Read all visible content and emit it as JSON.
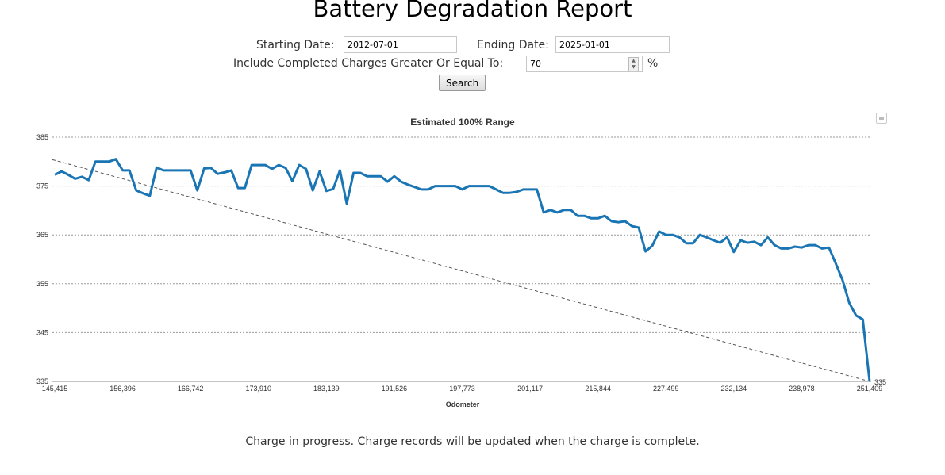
{
  "page": {
    "title": "Battery Degradation Report"
  },
  "form": {
    "start_label": "Starting Date:",
    "start_value": "2012-07-01",
    "end_label": "Ending Date:",
    "end_value": "2025-01-01",
    "threshold_label": "Include Completed Charges Greater Or Equal To:",
    "threshold_value": "70",
    "threshold_unit": "%",
    "search_label": "Search"
  },
  "footer": {
    "message": "Charge in progress. Charge records will be updated when the charge is complete."
  },
  "colors": {
    "series": "#1a75b4",
    "trend": "#555555",
    "grid": "#999999"
  },
  "chart_data": {
    "type": "line",
    "title": "Estimated 100% Range",
    "xlabel": "Odometer",
    "ylabel": "",
    "ylim": [
      335,
      385
    ],
    "yticks": [
      335,
      345,
      355,
      365,
      375,
      385
    ],
    "grid": true,
    "legend": "none",
    "x_tick_labels": [
      "145,415",
      "156,396",
      "166,742",
      "173,910",
      "183,139",
      "191,526",
      "197,773",
      "201,117",
      "215,844",
      "227,499",
      "232,134",
      "238,978",
      "251,409"
    ],
    "last_point_label": "335",
    "series": [
      {
        "values": [
          377.3,
          378.0,
          377.3,
          376.5,
          376.9,
          376.2,
          380.0,
          380.0,
          380.0,
          380.5,
          378.2,
          378.2,
          374.1,
          373.5,
          373.0,
          378.8,
          378.2,
          378.2,
          378.2,
          378.2,
          378.2,
          374.1,
          378.6,
          378.7,
          377.5,
          377.8,
          378.2,
          374.6,
          374.6,
          379.3,
          379.3,
          379.3,
          378.5,
          379.3,
          378.7,
          376.0,
          379.3,
          378.5,
          374.1,
          378.0,
          374.0,
          374.4,
          378.2,
          371.4,
          377.7,
          377.7,
          377.0,
          377.0,
          377.0,
          375.9,
          377.0,
          375.9,
          375.3,
          374.8,
          374.3,
          374.3,
          375.0,
          375.0,
          375.0,
          375.0,
          374.3,
          375.0,
          375.0,
          375.0,
          375.0,
          374.3,
          373.6,
          373.6,
          373.8,
          374.3,
          374.3,
          374.3,
          369.6,
          370.1,
          369.6,
          370.1,
          370.1,
          368.9,
          368.9,
          368.4,
          368.4,
          368.9,
          367.8,
          367.6,
          367.8,
          366.8,
          366.5,
          361.6,
          362.8,
          365.7,
          365.0,
          365.0,
          364.5,
          363.3,
          363.3,
          365.0,
          364.5,
          363.9,
          363.4,
          364.5,
          361.5,
          363.9,
          363.4,
          363.6,
          362.9,
          364.5,
          362.9,
          362.2,
          362.2,
          362.6,
          362.4,
          362.9,
          362.9,
          362.2,
          362.4,
          359.2,
          355.8,
          351.1,
          348.5,
          347.7,
          335.0
        ]
      },
      {
        "type": "trend",
        "style": "dashed",
        "values_start_end": [
          380.4,
          335.0
        ]
      }
    ]
  }
}
